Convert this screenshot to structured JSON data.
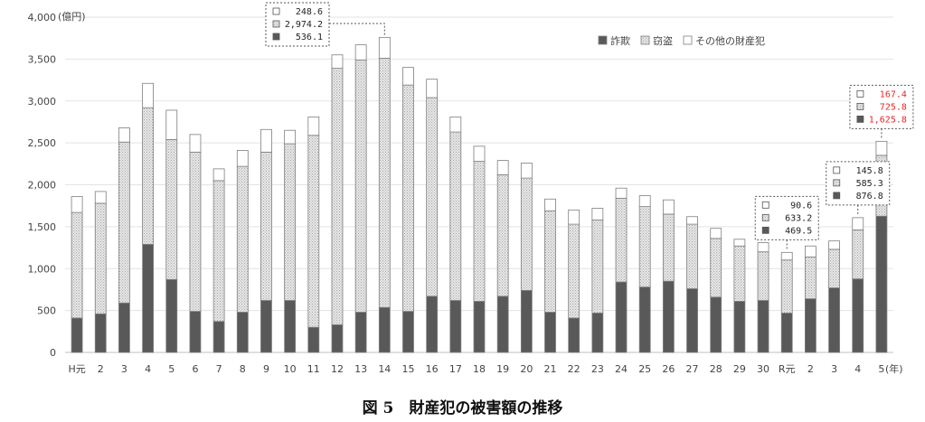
{
  "caption": "図 5　財産犯の被害額の推移",
  "colors": {
    "fraud": "#595959",
    "theft": "#e8e8e8",
    "other": "#ffffff",
    "outline": "#7f7f7f",
    "highlight": "#e8262b"
  },
  "chart_data": {
    "type": "bar",
    "stacked": true,
    "y_unit": "(億円)",
    "x_unit": "(年)",
    "ylim": [
      0,
      4000
    ],
    "yticks": [
      "0",
      "500",
      "1,000",
      "1,500",
      "2,000",
      "2,500",
      "3,000",
      "3,500",
      "4,000"
    ],
    "grid": true,
    "legend_position": "top-right",
    "categories": [
      "H元",
      "2",
      "3",
      "4",
      "5",
      "6",
      "7",
      "8",
      "9",
      "10",
      "11",
      "12",
      "13",
      "14",
      "15",
      "16",
      "17",
      "18",
      "19",
      "20",
      "21",
      "22",
      "23",
      "24",
      "25",
      "26",
      "27",
      "28",
      "29",
      "30",
      "R元",
      "2",
      "3",
      "4",
      "5"
    ],
    "series": [
      {
        "name": "詐欺",
        "key": "fraud",
        "values": [
          410,
          460,
          590,
          1290,
          870,
          490,
          370,
          480,
          620,
          620,
          300,
          330,
          480,
          536.1,
          490,
          670,
          620,
          610,
          670,
          740,
          480,
          410,
          470,
          840,
          780,
          850,
          760,
          660,
          610,
          620,
          469.5,
          640,
          770,
          876.8,
          1625.8
        ]
      },
      {
        "name": "窃盗",
        "key": "theft",
        "values": [
          1260,
          1320,
          1920,
          1630,
          1670,
          1900,
          1680,
          1740,
          1770,
          1870,
          2290,
          3060,
          3010,
          2974.2,
          2700,
          2370,
          2010,
          1670,
          1450,
          1340,
          1210,
          1120,
          1110,
          1000,
          960,
          800,
          770,
          700,
          660,
          580,
          633.2,
          500,
          460,
          585.3,
          725.8
        ]
      },
      {
        "name": "その他の財産犯",
        "key": "other",
        "values": [
          190,
          140,
          170,
          290,
          350,
          210,
          140,
          190,
          270,
          160,
          220,
          160,
          180,
          248.6,
          210,
          220,
          180,
          180,
          170,
          180,
          140,
          170,
          140,
          120,
          130,
          170,
          90,
          120,
          80,
          110,
          90.6,
          130,
          100,
          145.8,
          167.4
        ]
      }
    ],
    "annotations": [
      {
        "category_index": 13,
        "lines": [
          "248.6",
          "2,974.2",
          "536.1"
        ],
        "highlight": false
      },
      {
        "category_index": 30,
        "lines": [
          "90.6",
          "633.2",
          "469.5"
        ],
        "highlight": false
      },
      {
        "category_index": 33,
        "lines": [
          "145.8",
          "585.3",
          "876.8"
        ],
        "highlight": false
      },
      {
        "category_index": 34,
        "lines": [
          "167.4",
          "725.8",
          "1,625.8"
        ],
        "highlight": true
      }
    ]
  }
}
